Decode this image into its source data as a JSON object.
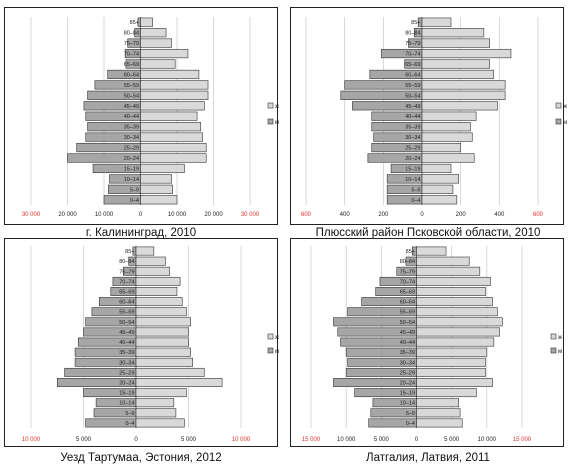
{
  "chart_data": [
    {
      "type": "bar",
      "orientation": "horizontal-population-pyramid",
      "title": "г. Калининград, 2010",
      "xlabel": "",
      "ylabel": "",
      "xlim": [
        -30000,
        30000
      ],
      "xticks": [
        "30 000",
        "20 000",
        "10 000",
        "0",
        "10 000",
        "20 000",
        "30 000"
      ],
      "categories": [
        "0–4",
        "5–9",
        "10–14",
        "15–19",
        "20–24",
        "25–29",
        "30–34",
        "35–39",
        "40–44",
        "45–49",
        "50–54",
        "55–59",
        "60–64",
        "65–69",
        "70–74",
        "75–79",
        "80–84",
        "85+"
      ],
      "legend": [
        "ж",
        "м"
      ],
      "series": [
        {
          "name": "м",
          "values": [
            10000,
            8800,
            8500,
            13000,
            20000,
            17500,
            15000,
            14500,
            15000,
            15500,
            14500,
            12500,
            9000,
            4000,
            4200,
            3500,
            1600,
            700
          ]
        },
        {
          "name": "ж",
          "values": [
            10000,
            8800,
            8500,
            12000,
            18000,
            18000,
            17000,
            16500,
            15500,
            17500,
            18500,
            18500,
            16000,
            9500,
            13000,
            8500,
            7000,
            3300
          ]
        }
      ]
    },
    {
      "type": "bar",
      "orientation": "horizontal-population-pyramid",
      "title": "Плюсский район Псковской области, 2010",
      "xlabel": "",
      "ylabel": "",
      "xlim": [
        -600,
        600
      ],
      "xticks": [
        "600",
        "400",
        "200",
        "0",
        "200",
        "400",
        "600"
      ],
      "categories": [
        "0–4",
        "5–9",
        "10–14",
        "15–19",
        "20–24",
        "25–29",
        "30–34",
        "35–39",
        "40–44",
        "45–49",
        "50–54",
        "55–59",
        "60–64",
        "65–69",
        "70–74",
        "75–79",
        "80–84",
        "85+"
      ],
      "legend": [
        "ж",
        "м"
      ],
      "series": [
        {
          "name": "м",
          "values": [
            180,
            180,
            180,
            160,
            280,
            260,
            250,
            260,
            260,
            360,
            420,
            400,
            270,
            90,
            210,
            70,
            40,
            20
          ]
        },
        {
          "name": "ж",
          "values": [
            180,
            160,
            190,
            150,
            270,
            200,
            260,
            250,
            280,
            390,
            430,
            430,
            370,
            350,
            460,
            350,
            320,
            150
          ]
        }
      ]
    },
    {
      "type": "bar",
      "orientation": "horizontal-population-pyramid",
      "title": "Уезд Тартумаа, Эстония, 2012",
      "xlabel": "",
      "ylabel": "",
      "xlim": [
        -10000,
        10000
      ],
      "xticks": [
        "10 000",
        "5 000",
        "0",
        "5 000",
        "10 000"
      ],
      "categories": [
        "0–4",
        "5–9",
        "10–14",
        "15–19",
        "20–24",
        "25–29",
        "30–34",
        "35–39",
        "40–44",
        "45–49",
        "50–54",
        "55–59",
        "60–64",
        "65–69",
        "70–74",
        "75–79",
        "80–84",
        "85+"
      ],
      "legend": [
        "ж",
        "м"
      ],
      "series": [
        {
          "name": "м",
          "values": [
            4800,
            4000,
            3800,
            5000,
            7500,
            6800,
            5800,
            5800,
            5500,
            5000,
            4800,
            4200,
            3500,
            2400,
            2200,
            1200,
            700,
            300
          ]
        },
        {
          "name": "ж",
          "values": [
            4600,
            3800,
            3600,
            4800,
            8200,
            6500,
            5400,
            5200,
            5000,
            5000,
            5200,
            4800,
            4400,
            3900,
            4200,
            3200,
            2800,
            1700
          ]
        }
      ]
    },
    {
      "type": "bar",
      "orientation": "horizontal-population-pyramid",
      "title": "Латгалия, Латвия, 2011",
      "xlabel": "",
      "ylabel": "",
      "xlim": [
        -15000,
        15000
      ],
      "xticks": [
        "15 000",
        "10 000",
        "5 000",
        "0",
        "5 000",
        "10 000",
        "15 000"
      ],
      "categories": [
        "0–4",
        "5–9",
        "10–14",
        "15–19",
        "20–24",
        "25–29",
        "30–34",
        "35–39",
        "40–44",
        "45–49",
        "50–54",
        "55–59",
        "60–64",
        "65–69",
        "70–74",
        "75–79",
        "80–84",
        "85+"
      ],
      "legend": [
        "ж",
        "м"
      ],
      "series": [
        {
          "name": "м",
          "values": [
            6800,
            6500,
            6200,
            8800,
            11800,
            10000,
            9800,
            10000,
            10800,
            11200,
            11800,
            9800,
            7800,
            5800,
            5200,
            2800,
            1500,
            600
          ]
        },
        {
          "name": "ж",
          "values": [
            6500,
            6200,
            6000,
            8500,
            10800,
            9800,
            9800,
            10000,
            11000,
            11800,
            12200,
            11500,
            10800,
            9800,
            10500,
            9000,
            7500,
            4200
          ]
        }
      ]
    }
  ],
  "colors": {
    "male_bar": "#a6a6a6",
    "female_bar": "#d9d9d9",
    "outer_tick": "#e0322f",
    "inner_tick": "#222222"
  }
}
